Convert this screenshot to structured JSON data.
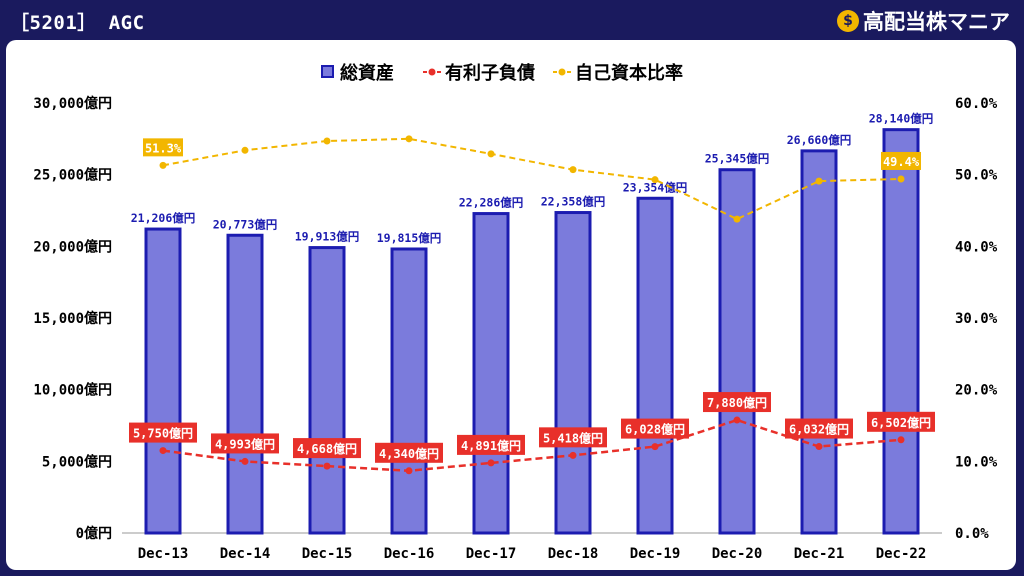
{
  "header": {
    "title": "［5201］ AGC",
    "brand": "高配当株マニア",
    "brand_icon": "money-bag-icon"
  },
  "chart_data": {
    "type": "bar",
    "categories": [
      "Dec-13",
      "Dec-14",
      "Dec-15",
      "Dec-16",
      "Dec-17",
      "Dec-18",
      "Dec-19",
      "Dec-20",
      "Dec-21",
      "Dec-22"
    ],
    "series": [
      {
        "name": "総資産",
        "type": "bar",
        "axis": "left",
        "color": "#7b7bdc",
        "border": "#1c1cb0",
        "values": [
          21206,
          20773,
          19913,
          19815,
          22286,
          22358,
          23354,
          25345,
          26660,
          28140
        ],
        "labels": [
          "21,206億円",
          "20,773億円",
          "19,913億円",
          "19,815億円",
          "22,286億円",
          "22,358億円",
          "23,354億円",
          "25,345億円",
          "26,660億円",
          "28,140億円"
        ]
      },
      {
        "name": "有利子負債",
        "type": "line",
        "axis": "left",
        "color": "#e8302a",
        "values": [
          5750,
          4993,
          4668,
          4340,
          4891,
          5418,
          6028,
          7880,
          6032,
          6502
        ],
        "labels": [
          "5,750億円",
          "4,993億円",
          "4,668億円",
          "4,340億円",
          "4,891億円",
          "5,418億円",
          "6,028億円",
          "7,880億円",
          "6,032億円",
          "6,502億円"
        ]
      },
      {
        "name": "自己資本比率",
        "type": "line",
        "axis": "right",
        "color": "#f2b600",
        "values": [
          51.3,
          53.4,
          54.7,
          55.0,
          52.9,
          50.7,
          49.3,
          43.8,
          49.1,
          49.4
        ],
        "labels": [
          "51.3%",
          "",
          "",
          "",
          "",
          "",
          "",
          "",
          "",
          "49.4%"
        ]
      }
    ],
    "y_left": {
      "min": 0,
      "max": 30000,
      "ticks": [
        "0億円",
        "5,000億円",
        "10,000億円",
        "15,000億円",
        "20,000億円",
        "25,000億円",
        "30,000億円"
      ]
    },
    "y_right": {
      "min": 0,
      "max": 60,
      "ticks": [
        "0.0%",
        "10.0%",
        "20.0%",
        "30.0%",
        "40.0%",
        "50.0%",
        "60.0%"
      ]
    },
    "grid": false,
    "legend_position": "top-center"
  }
}
